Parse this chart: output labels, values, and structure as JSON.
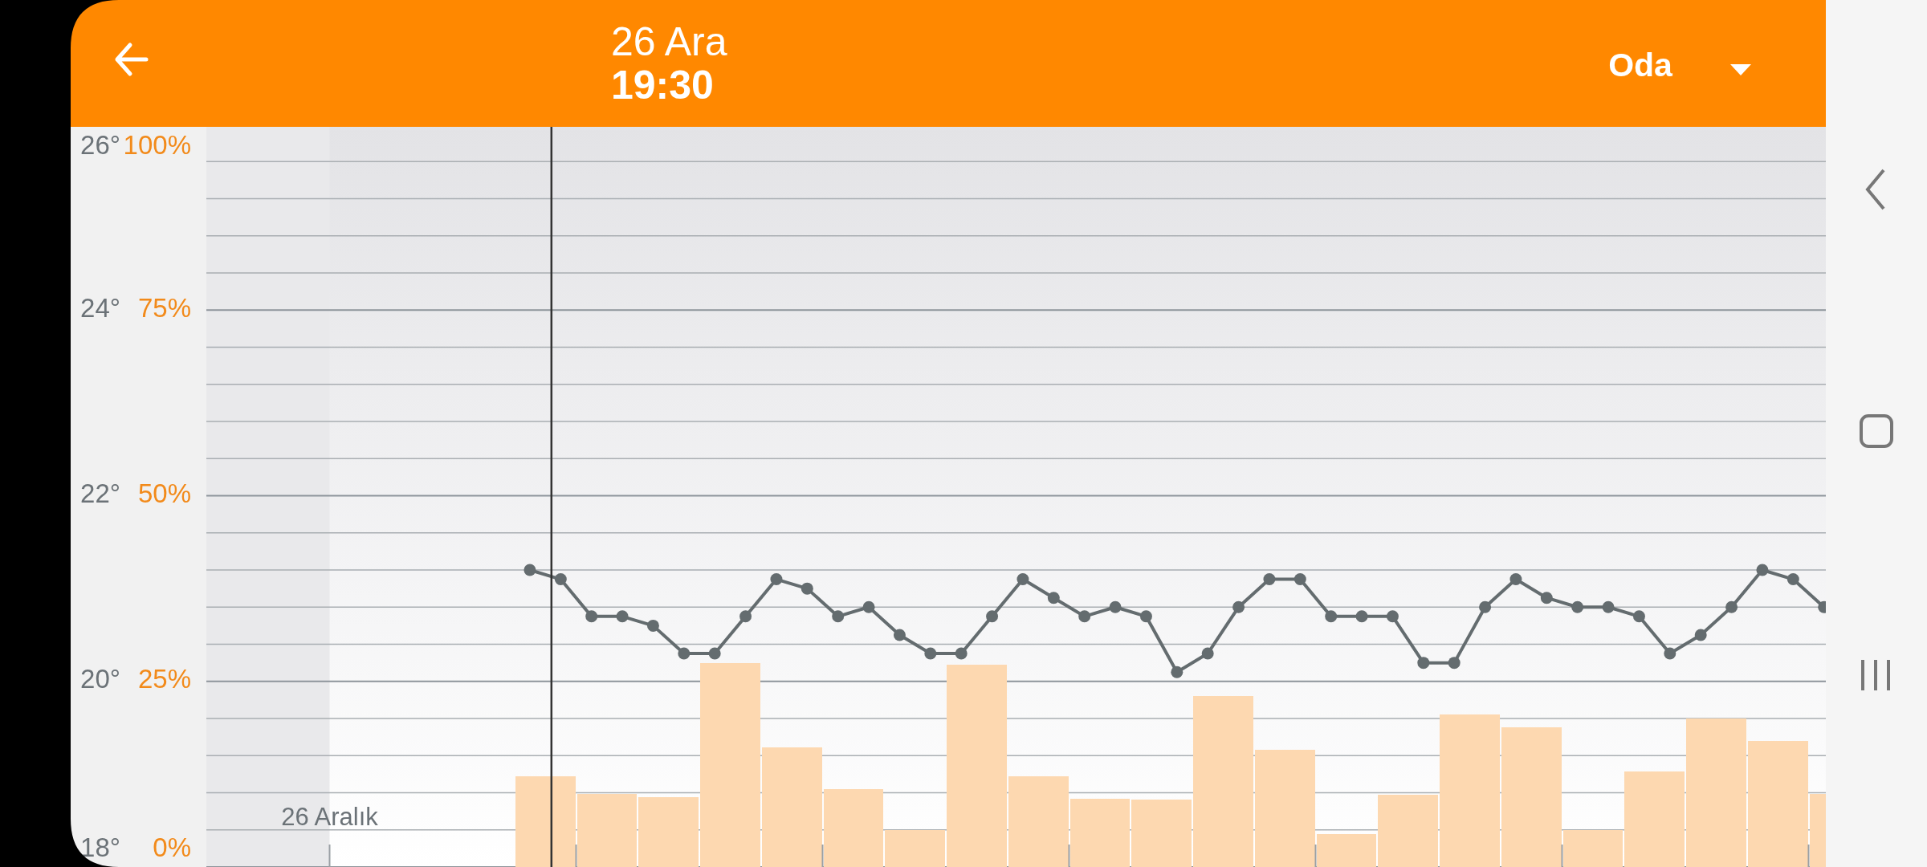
{
  "chart_data": {
    "type": "bar",
    "title": "26 Ara",
    "subtitle": "19:30",
    "annotations": [
      "Oda",
      "26 Aralık"
    ],
    "categories": [
      null,
      null,
      null,
      null,
      null,
      null,
      null,
      null,
      null,
      null,
      null,
      null,
      null,
      null,
      null,
      null,
      null,
      null,
      null,
      null,
      null,
      null,
      null,
      null,
      null,
      null,
      null,
      null,
      null,
      null,
      null,
      null,
      null,
      null,
      null,
      null,
      null,
      null,
      null,
      null,
      null,
      null,
      null,
      null,
      null,
      null,
      null,
      null,
      null,
      null,
      null,
      null,
      null
    ],
    "series": [
      {
        "axis": "y2",
        "color": "#fdd8b0",
        "values": [
          null,
          null,
          null,
          null,
          null,
          null,
          null,
          null,
          null,
          null,
          12.2,
          12.2,
          9.8,
          9.8,
          9.4,
          9.4,
          27.5,
          27.5,
          16.1,
          16.1,
          10.5,
          10.5,
          5.0,
          5.0,
          27.2,
          27.2,
          12.2,
          12.2,
          9.2,
          9.2,
          9.1,
          9.1,
          23.0,
          23.0,
          15.8,
          15.8,
          4.4,
          4.4,
          9.7,
          9.7,
          20.5,
          20.5,
          18.8,
          18.8,
          5.0,
          5.0,
          12.9,
          12.9,
          20.0,
          20.0,
          17.0,
          17.0,
          9.8
        ]
      },
      {
        "type": "line",
        "color": "#646c6f",
        "values": [
          null,
          null,
          null,
          null,
          null,
          null,
          null,
          null,
          null,
          null,
          21.2,
          21.1,
          20.7,
          20.7,
          20.6,
          20.3,
          20.3,
          20.7,
          21.1,
          21.0,
          20.7,
          20.8,
          20.5,
          20.3,
          20.3,
          20.7,
          21.1,
          20.9,
          20.7,
          20.8,
          20.7,
          20.1,
          20.3,
          20.8,
          21.1,
          21.1,
          20.7,
          20.7,
          20.7,
          20.2,
          20.2,
          20.8,
          21.1,
          20.9,
          20.8,
          20.8,
          20.7,
          20.3,
          20.5,
          20.8,
          21.2,
          21.1,
          20.8
        ]
      }
    ],
    "ylim": [
      18,
      26
    ],
    "yticks": [
      {
        "value": 18,
        "label": "18°"
      },
      {
        "value": 18.4,
        "label": null
      },
      {
        "value": 18.8,
        "label": null
      },
      {
        "value": 19.2,
        "label": null
      },
      {
        "value": 19.6,
        "label": null
      },
      {
        "value": 20,
        "label": "20°"
      },
      {
        "value": 20.4,
        "label": null
      },
      {
        "value": 20.8,
        "label": null
      },
      {
        "value": 21.2,
        "label": null
      },
      {
        "value": 21.6,
        "label": null
      },
      {
        "value": 22,
        "label": "22°"
      },
      {
        "value": 22.4,
        "label": null
      },
      {
        "value": 22.8,
        "label": null
      },
      {
        "value": 23.2,
        "label": null
      },
      {
        "value": 23.6,
        "label": null
      },
      {
        "value": 24,
        "label": "24°"
      },
      {
        "value": 24.4,
        "label": null
      },
      {
        "value": 24.8,
        "label": null
      },
      {
        "value": 25.2,
        "label": null
      },
      {
        "value": 25.6,
        "label": null
      },
      {
        "value": 26,
        "label": "26°"
      }
    ],
    "y2lim": [
      0,
      100
    ],
    "y2ticks": [
      {
        "value": 0,
        "label": "0%"
      },
      {
        "value": 25,
        "label": "25%"
      },
      {
        "value": 50,
        "label": "50%"
      },
      {
        "value": 75,
        "label": "75%"
      },
      {
        "value": 100,
        "label": "100%"
      }
    ],
    "grid": "y",
    "marker": "circle"
  }
}
